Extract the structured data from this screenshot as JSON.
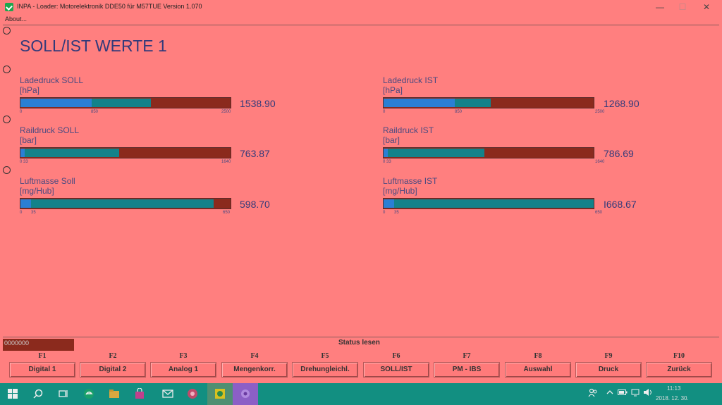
{
  "window": {
    "title": "INPA - Loader:  Motorelektronik DDE50 für M57TUE Version 1.070",
    "minimize": "—",
    "maximize": "☐",
    "close": "✕"
  },
  "menu": {
    "about": "About..."
  },
  "page_title": "SOLL/IST WERTE 1",
  "gauges": [
    {
      "label": "Ladedruck SOLL",
      "unit": "[hPa]",
      "value": "1538.90",
      "tick_min": "0",
      "tick_mid": "850",
      "tick_max": "2500",
      "fill_fraction": 0.62,
      "marker_fraction": 0.34
    },
    {
      "label": "Ladedruck IST",
      "unit": "[hPa]",
      "value": "1268.90",
      "tick_min": "0",
      "tick_mid": "850",
      "tick_max": "2500",
      "fill_fraction": 0.51,
      "marker_fraction": 0.34
    },
    {
      "label": "Raildruck SOLL",
      "unit": "[bar]",
      "value": "763.87",
      "tick_min": "0 33",
      "tick_mid": "",
      "tick_max": "1640",
      "fill_fraction": 0.47,
      "marker_fraction": 0.02
    },
    {
      "label": "Raildruck IST",
      "unit": "[bar]",
      "value": "786.69",
      "tick_min": "0 33",
      "tick_mid": "",
      "tick_max": "1640",
      "fill_fraction": 0.48,
      "marker_fraction": 0.02
    },
    {
      "label": "Luftmasse Soll",
      "unit": "[mg/Hub]",
      "value": "598.70",
      "tick_min": "0",
      "tick_mid": "35",
      "tick_max": "650",
      "fill_fraction": 0.92,
      "marker_fraction": 0.05
    },
    {
      "label": "Luftmasse IST",
      "unit": "[mg/Hub]",
      "value": "I668.67",
      "tick_min": "0",
      "tick_mid": "35",
      "tick_max": "650",
      "fill_fraction": 1.0,
      "marker_fraction": 0.05
    }
  ],
  "status": {
    "box_text": "0000000",
    "label": "Status lesen"
  },
  "function_keys": [
    {
      "key": "F1",
      "label": "Digital 1"
    },
    {
      "key": "F2",
      "label": "Digital 2"
    },
    {
      "key": "F3",
      "label": "Analog 1"
    },
    {
      "key": "F4",
      "label": "Mengenkorr."
    },
    {
      "key": "F5",
      "label": "Drehungleichl."
    },
    {
      "key": "F6",
      "label": "SOLL/IST"
    },
    {
      "key": "F7",
      "label": "PM - IBS"
    },
    {
      "key": "F8",
      "label": "Auswahl"
    },
    {
      "key": "F9",
      "label": "Druck"
    },
    {
      "key": "F10",
      "label": "Zurück"
    }
  ],
  "taskbar": {
    "clock_time": "11:13",
    "clock_date": "2018. 12. 30.",
    "icons": [
      "windows-start-icon",
      "search-icon",
      "task-view-icon",
      "edge-icon",
      "file-explorer-icon",
      "store-icon",
      "mail-icon",
      "app-icon",
      "inpa-icon",
      "purple-app-icon"
    ]
  },
  "colors": {
    "background": "#FF7F7F",
    "bar_track": "#8b2a1d",
    "bar_fill": "#13828a",
    "bar_marker": "#2a7fd4",
    "taskbar": "#128f81"
  }
}
